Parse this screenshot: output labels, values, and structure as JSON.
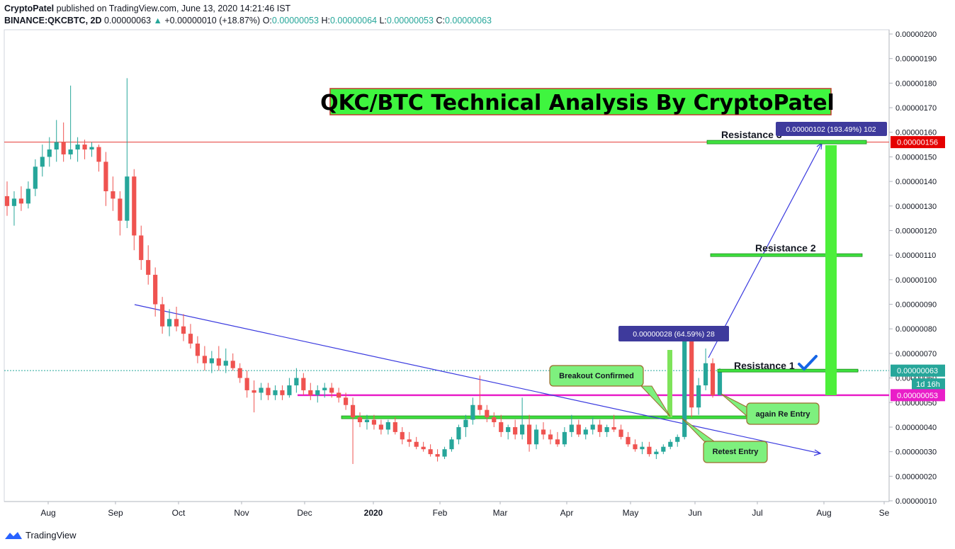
{
  "header": {
    "author": "CryptoPatel",
    "published": "published on TradingView.com, June 13, 2020 14:21:46 IST",
    "symbol": "BINANCE:QKCBTC, 2D",
    "last": "0.00000063",
    "change": "+0.00000010 (+18.87%)",
    "o_label": "O:",
    "o_value": "0.00000053",
    "h_label": "H:",
    "h_value": "0.00000064",
    "l_label": "L:",
    "l_value": "0.00000053",
    "c_label": "C:",
    "c_value": "0.00000063"
  },
  "footer": {
    "brand": "TradingView"
  },
  "chart_data": {
    "type": "candlestick",
    "title": "QKC/BTC Technical Analysis By CryptoPatel",
    "ylim": [
      1e-07,
      2e-06
    ],
    "y_ticks": [
      "0.00000010",
      "0.00000020",
      "0.00000030",
      "0.00000040",
      "0.00000050",
      "0.00000060",
      "0.00000070",
      "0.00000080",
      "0.00000090",
      "0.00000100",
      "0.00000110",
      "0.00000120",
      "0.00000130",
      "0.00000140",
      "0.00000150",
      "0.00000160",
      "0.00000170",
      "0.00000180",
      "0.00000190",
      "0.00000200"
    ],
    "x_ticks": [
      "Aug",
      "Sep",
      "Oct",
      "Nov",
      "Dec",
      "2020",
      "Feb",
      "Mar",
      "Apr",
      "May",
      "Jun",
      "Jul",
      "Aug",
      "Se"
    ],
    "price_labels": {
      "resistance_red": "0.00000156",
      "current": "0.00000063",
      "countdown": "1d 16h",
      "support_magenta": "0.00000053"
    },
    "annotations": {
      "resistance_1": "Resistance 1",
      "resistance_2": "Resistance 2",
      "resistance_3": "Resistance 3",
      "measure_small": "0.00000028 (64.59%) 28",
      "measure_big": "0.00000102 (193.49%) 102",
      "breakout": "Breakout Confirmed",
      "retest": "Retest Entry",
      "reentry": "again Re Entry"
    },
    "levels": {
      "resistance_red": 1.56e-06,
      "resistance_2": 1.1e-06,
      "resistance_1": 6.3e-07,
      "support_magenta": 5.3e-07,
      "support_green": 4.4e-07
    },
    "candles": [
      [
        1.34e-06,
        1.4e-06,
        1.26e-06,
        1.3e-06
      ],
      [
        1.3e-06,
        1.36e-06,
        1.22e-06,
        1.33e-06
      ],
      [
        1.33e-06,
        1.38e-06,
        1.28e-06,
        1.31e-06
      ],
      [
        1.31e-06,
        1.4e-06,
        1.29e-06,
        1.37e-06
      ],
      [
        1.37e-06,
        1.49e-06,
        1.34e-06,
        1.46e-06
      ],
      [
        1.46e-06,
        1.55e-06,
        1.42e-06,
        1.5e-06
      ],
      [
        1.5e-06,
        1.58e-06,
        1.46e-06,
        1.53e-06
      ],
      [
        1.53e-06,
        1.65e-06,
        1.48e-06,
        1.56e-06
      ],
      [
        1.56e-06,
        1.64e-06,
        1.48e-06,
        1.51e-06
      ],
      [
        1.51e-06,
        1.79e-06,
        1.49e-06,
        1.53e-06
      ],
      [
        1.53e-06,
        1.58e-06,
        1.48e-06,
        1.55e-06
      ],
      [
        1.55e-06,
        1.57e-06,
        1.49e-06,
        1.53e-06
      ],
      [
        1.53e-06,
        1.56e-06,
        1.5e-06,
        1.54e-06
      ],
      [
        1.54e-06,
        1.55e-06,
        1.44e-06,
        1.48e-06
      ],
      [
        1.48e-06,
        1.52e-06,
        1.3e-06,
        1.36e-06
      ],
      [
        1.36e-06,
        1.42e-06,
        1.28e-06,
        1.33e-06
      ],
      [
        1.33e-06,
        1.36e-06,
        1.18e-06,
        1.24e-06
      ],
      [
        1.24e-06,
        1.82e-06,
        1.21e-06,
        1.42e-06
      ],
      [
        1.42e-06,
        1.45e-06,
        1.12e-06,
        1.18e-06
      ],
      [
        1.18e-06,
        1.22e-06,
        1.04e-06,
        1.08e-06
      ],
      [
        1.08e-06,
        1.14e-06,
        9.8e-07,
        1.02e-06
      ],
      [
        1.02e-06,
        1.05e-06,
        8.5e-07,
        9e-07
      ],
      [
        9e-07,
        9.3e-07,
        7.8e-07,
        8.1e-07
      ],
      [
        8.1e-07,
        8.8e-07,
        7.7e-07,
        8.4e-07
      ],
      [
        8.4e-07,
        8.9e-07,
        7.9e-07,
        8.1e-07
      ],
      [
        8.1e-07,
        8.6e-07,
        7.5e-07,
        7.8e-07
      ],
      [
        7.8e-07,
        8.2e-07,
        7.2e-07,
        7.4e-07
      ],
      [
        7.4e-07,
        7.7e-07,
        6.6e-07,
        6.9e-07
      ],
      [
        6.9e-07,
        7.3e-07,
        6.3e-07,
        6.6e-07
      ],
      [
        6.6e-07,
        7.1e-07,
        6.2e-07,
        6.8e-07
      ],
      [
        6.8e-07,
        7.3e-07,
        6.3e-07,
        6.5e-07
      ],
      [
        6.5e-07,
        7.2e-07,
        6.2e-07,
        6.7e-07
      ],
      [
        6.7e-07,
        7e-07,
        6.3e-07,
        6.4e-07
      ],
      [
        6.4e-07,
        6.6e-07,
        5.8e-07,
        6e-07
      ],
      [
        6e-07,
        6.3e-07,
        5.2e-07,
        5.5e-07
      ],
      [
        5.5e-07,
        5.9e-07,
        4.6e-07,
        5.4e-07
      ],
      [
        5.4e-07,
        5.8e-07,
        5.1e-07,
        5.6e-07
      ],
      [
        5.6e-07,
        5.8e-07,
        5.1e-07,
        5.3e-07
      ],
      [
        5.3e-07,
        5.7e-07,
        5.1e-07,
        5.5e-07
      ],
      [
        5.5e-07,
        5.7e-07,
        5.1e-07,
        5.3e-07
      ],
      [
        5.3e-07,
        6e-07,
        5.2e-07,
        5.7e-07
      ],
      [
        5.7e-07,
        6.4e-07,
        5.4e-07,
        6e-07
      ],
      [
        6e-07,
        6.2e-07,
        5.3e-07,
        5.5e-07
      ],
      [
        5.5e-07,
        5.8e-07,
        5.1e-07,
        5.3e-07
      ],
      [
        5.3e-07,
        5.7e-07,
        5e-07,
        5.5e-07
      ],
      [
        5.5e-07,
        5.8e-07,
        5.2e-07,
        5.6e-07
      ],
      [
        5.6e-07,
        5.8e-07,
        5.2e-07,
        5.4e-07
      ],
      [
        5.4e-07,
        5.6e-07,
        5e-07,
        5.2e-07
      ],
      [
        5.2e-07,
        5.4e-07,
        4.7e-07,
        4.9e-07
      ],
      [
        4.9e-07,
        5.2e-07,
        2.5e-07,
        4.4e-07
      ],
      [
        4.4e-07,
        4.6e-07,
        4e-07,
        4.2e-07
      ],
      [
        4.2e-07,
        4.5e-07,
        3.9e-07,
        4.3e-07
      ],
      [
        4.3e-07,
        4.5e-07,
        3.9e-07,
        4.1e-07
      ],
      [
        4.1e-07,
        4.3e-07,
        3.7e-07,
        3.9e-07
      ],
      [
        3.9e-07,
        4.3e-07,
        3.7e-07,
        4.2e-07
      ],
      [
        4.2e-07,
        4.4e-07,
        3.7e-07,
        3.8e-07
      ],
      [
        3.8e-07,
        4e-07,
        3.3e-07,
        3.5e-07
      ],
      [
        3.5e-07,
        3.8e-07,
        3.2e-07,
        3.4e-07
      ],
      [
        3.4e-07,
        3.6e-07,
        3.1e-07,
        3.2e-07
      ],
      [
        3.2e-07,
        3.4e-07,
        3e-07,
        3.1e-07
      ],
      [
        3.1e-07,
        3.3e-07,
        2.8e-07,
        2.9e-07
      ],
      [
        2.9e-07,
        3.1e-07,
        2.6e-07,
        2.8e-07
      ],
      [
        2.8e-07,
        3.2e-07,
        2.7e-07,
        3.1e-07
      ],
      [
        3.1e-07,
        3.6e-07,
        3e-07,
        3.5e-07
      ],
      [
        3.5e-07,
        4.1e-07,
        3.3e-07,
        4e-07
      ],
      [
        4e-07,
        4.5e-07,
        3.6e-07,
        4.3e-07
      ],
      [
        4.3e-07,
        5.2e-07,
        4.1e-07,
        4.9e-07
      ],
      [
        4.9e-07,
        6.1e-07,
        4.5e-07,
        4.7e-07
      ],
      [
        4.7e-07,
        4.9e-07,
        4.2e-07,
        4.4e-07
      ],
      [
        4.4e-07,
        4.6e-07,
        4e-07,
        4.2e-07
      ],
      [
        4.2e-07,
        4.5e-07,
        3.6e-07,
        3.8e-07
      ],
      [
        3.8e-07,
        4.1e-07,
        3.5e-07,
        4e-07
      ],
      [
        4e-07,
        4.3e-07,
        3.5e-07,
        3.7e-07
      ],
      [
        3.7e-07,
        5.2e-07,
        3.5e-07,
        4.1e-07
      ],
      [
        4.1e-07,
        4.5e-07,
        3e-07,
        3.3e-07
      ],
      [
        3.3e-07,
        4.1e-07,
        3.1e-07,
        3.9e-07
      ],
      [
        3.9e-07,
        4.2e-07,
        3.5e-07,
        3.7e-07
      ],
      [
        3.7e-07,
        3.9e-07,
        3.3e-07,
        3.5e-07
      ],
      [
        3.5e-07,
        3.8e-07,
        3.2e-07,
        3.3e-07
      ],
      [
        3.3e-07,
        4e-07,
        3.2e-07,
        3.8e-07
      ],
      [
        3.8e-07,
        4.5e-07,
        3.6e-07,
        4.1e-07
      ],
      [
        4.1e-07,
        4.3e-07,
        3.6e-07,
        3.7e-07
      ],
      [
        3.7e-07,
        4e-07,
        3.5e-07,
        3.9e-07
      ],
      [
        3.9e-07,
        4.4e-07,
        3.7e-07,
        4.1e-07
      ],
      [
        4.1e-07,
        4.3e-07,
        3.6e-07,
        3.8e-07
      ],
      [
        3.8e-07,
        4.1e-07,
        3.6e-07,
        4e-07
      ],
      [
        4e-07,
        4.5e-07,
        3.8e-07,
        3.9e-07
      ],
      [
        3.9e-07,
        4.1e-07,
        3.5e-07,
        3.6e-07
      ],
      [
        3.6e-07,
        3.8e-07,
        3.2e-07,
        3.3e-07
      ],
      [
        3.3e-07,
        3.5e-07,
        3e-07,
        3.1e-07
      ],
      [
        3.1e-07,
        3.4e-07,
        2.9e-07,
        3.2e-07
      ],
      [
        3.2e-07,
        3.4e-07,
        2.8e-07,
        2.9e-07
      ],
      [
        2.9e-07,
        3.1e-07,
        2.7e-07,
        3e-07
      ],
      [
        3e-07,
        3.3e-07,
        2.9e-07,
        3.2e-07
      ],
      [
        3.2e-07,
        3.5e-07,
        3.1e-07,
        3.4e-07
      ],
      [
        3.4e-07,
        3.7e-07,
        3.2e-07,
        3.6e-07
      ],
      [
        3.6e-07,
        7.7e-07,
        3.5e-07,
        7.5e-07
      ],
      [
        7.5e-07,
        7.7e-07,
        4.4e-07,
        4.8e-07
      ],
      [
        4.8e-07,
        6e-07,
        4.5e-07,
        5.7e-07
      ],
      [
        5.7e-07,
        7.2e-07,
        5.5e-07,
        6.6e-07
      ],
      [
        6.6e-07,
        6.8e-07,
        5.2e-07,
        5.3e-07
      ],
      [
        5.3e-07,
        6.4e-07,
        5.3e-07,
        6.3e-07
      ]
    ]
  }
}
